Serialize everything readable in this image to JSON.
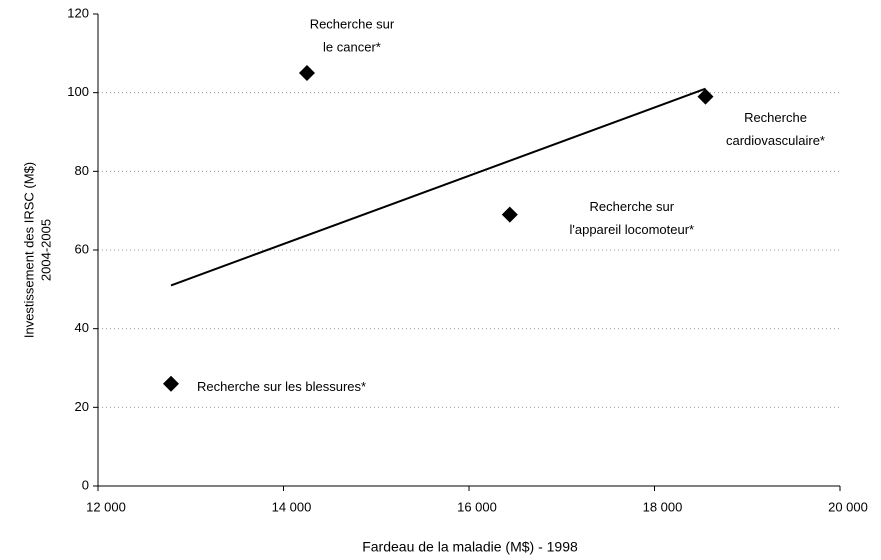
{
  "chart_data": {
    "type": "scatter",
    "x": [
      12787,
      14253,
      16440,
      18550
    ],
    "values": [
      26,
      105,
      69,
      99
    ],
    "point_labels": [
      [
        "Recherche sur les blessures*"
      ],
      [
        "Recherche sur",
        "le cancer*"
      ],
      [
        "Recherche sur",
        "l'appareil locomoteur*"
      ],
      [
        "Recherche",
        "cardiovasculaire*"
      ]
    ],
    "color": "#000000",
    "trendline": {
      "x": [
        12787,
        18550
      ],
      "values": [
        51,
        101
      ]
    },
    "x_label": "Fardeau de la maladie (M$) - 1998",
    "y_label": [
      "Investissement des IRSC (M$)",
      "2004-2005"
    ],
    "xlim": [
      12000,
      20000
    ],
    "xticks": [
      {
        "value": 12000,
        "label": "12 000"
      },
      {
        "value": 14000,
        "label": "14 000"
      },
      {
        "value": 16000,
        "label": "16 000"
      },
      {
        "value": 18000,
        "label": "18 000"
      },
      {
        "value": 20000,
        "label": "20 000"
      }
    ],
    "ylim": [
      0,
      120
    ],
    "yticks": [
      0,
      20,
      40,
      60,
      80,
      100,
      120
    ],
    "grid": true
  }
}
